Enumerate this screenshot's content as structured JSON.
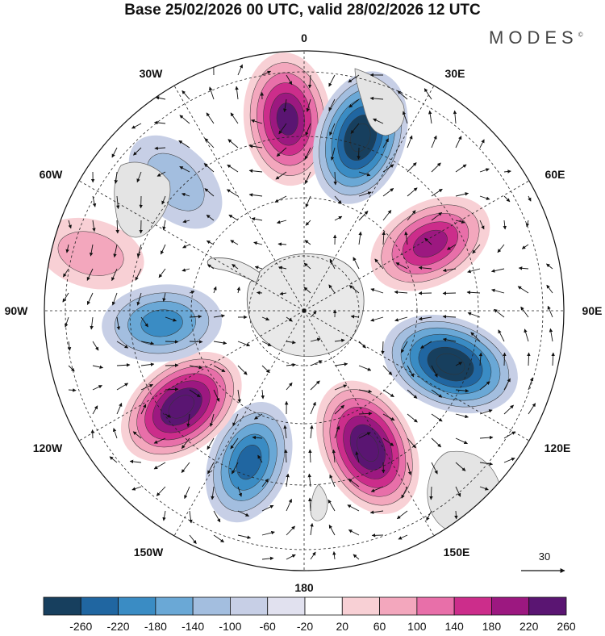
{
  "title": "Base 25/02/2026 00 UTC, valid 28/02/2026 12 UTC",
  "brand": "MODES",
  "brand_mark": "©",
  "longitude_labels": {
    "n": "0",
    "ne30": "30E",
    "ne60": "60E",
    "e": "90E",
    "se120": "120E",
    "se150": "150E",
    "s": "180",
    "sw150": "150W",
    "sw120": "120W",
    "w": "90W",
    "nw60": "60W",
    "nw30": "30W"
  },
  "vector_reference": "30",
  "colorbar": {
    "labels": [
      "-260",
      "-220",
      "-180",
      "-140",
      "-100",
      "-60",
      "-20",
      "20",
      "60",
      "100",
      "140",
      "180",
      "220",
      "260"
    ],
    "colors": [
      "#173f5e",
      "#2066a1",
      "#3a8cc4",
      "#6aa8d6",
      "#a3bedf",
      "#c7cfe6",
      "#e1e1ef",
      "#ffffff",
      "#f8d0d5",
      "#f3a7bd",
      "#e86fa9",
      "#cc2d8b",
      "#9c1880",
      "#5a1572"
    ]
  },
  "anomalies": [
    {
      "lon": -5,
      "r": 0.74,
      "value": 230
    },
    {
      "lon": 18,
      "r": 0.7,
      "value": -250
    },
    {
      "lon": 62,
      "r": 0.55,
      "value": 190
    },
    {
      "lon": 110,
      "r": 0.6,
      "value": -270
    },
    {
      "lon": 155,
      "r": 0.58,
      "value": 280
    },
    {
      "lon": -160,
      "r": 0.62,
      "value": -170
    },
    {
      "lon": -128,
      "r": 0.6,
      "value": 250
    },
    {
      "lon": -95,
      "r": 0.55,
      "value": -140
    },
    {
      "lon": -75,
      "r": 0.85,
      "value": 60
    },
    {
      "lon": -45,
      "r": 0.7,
      "value": -80
    }
  ]
}
